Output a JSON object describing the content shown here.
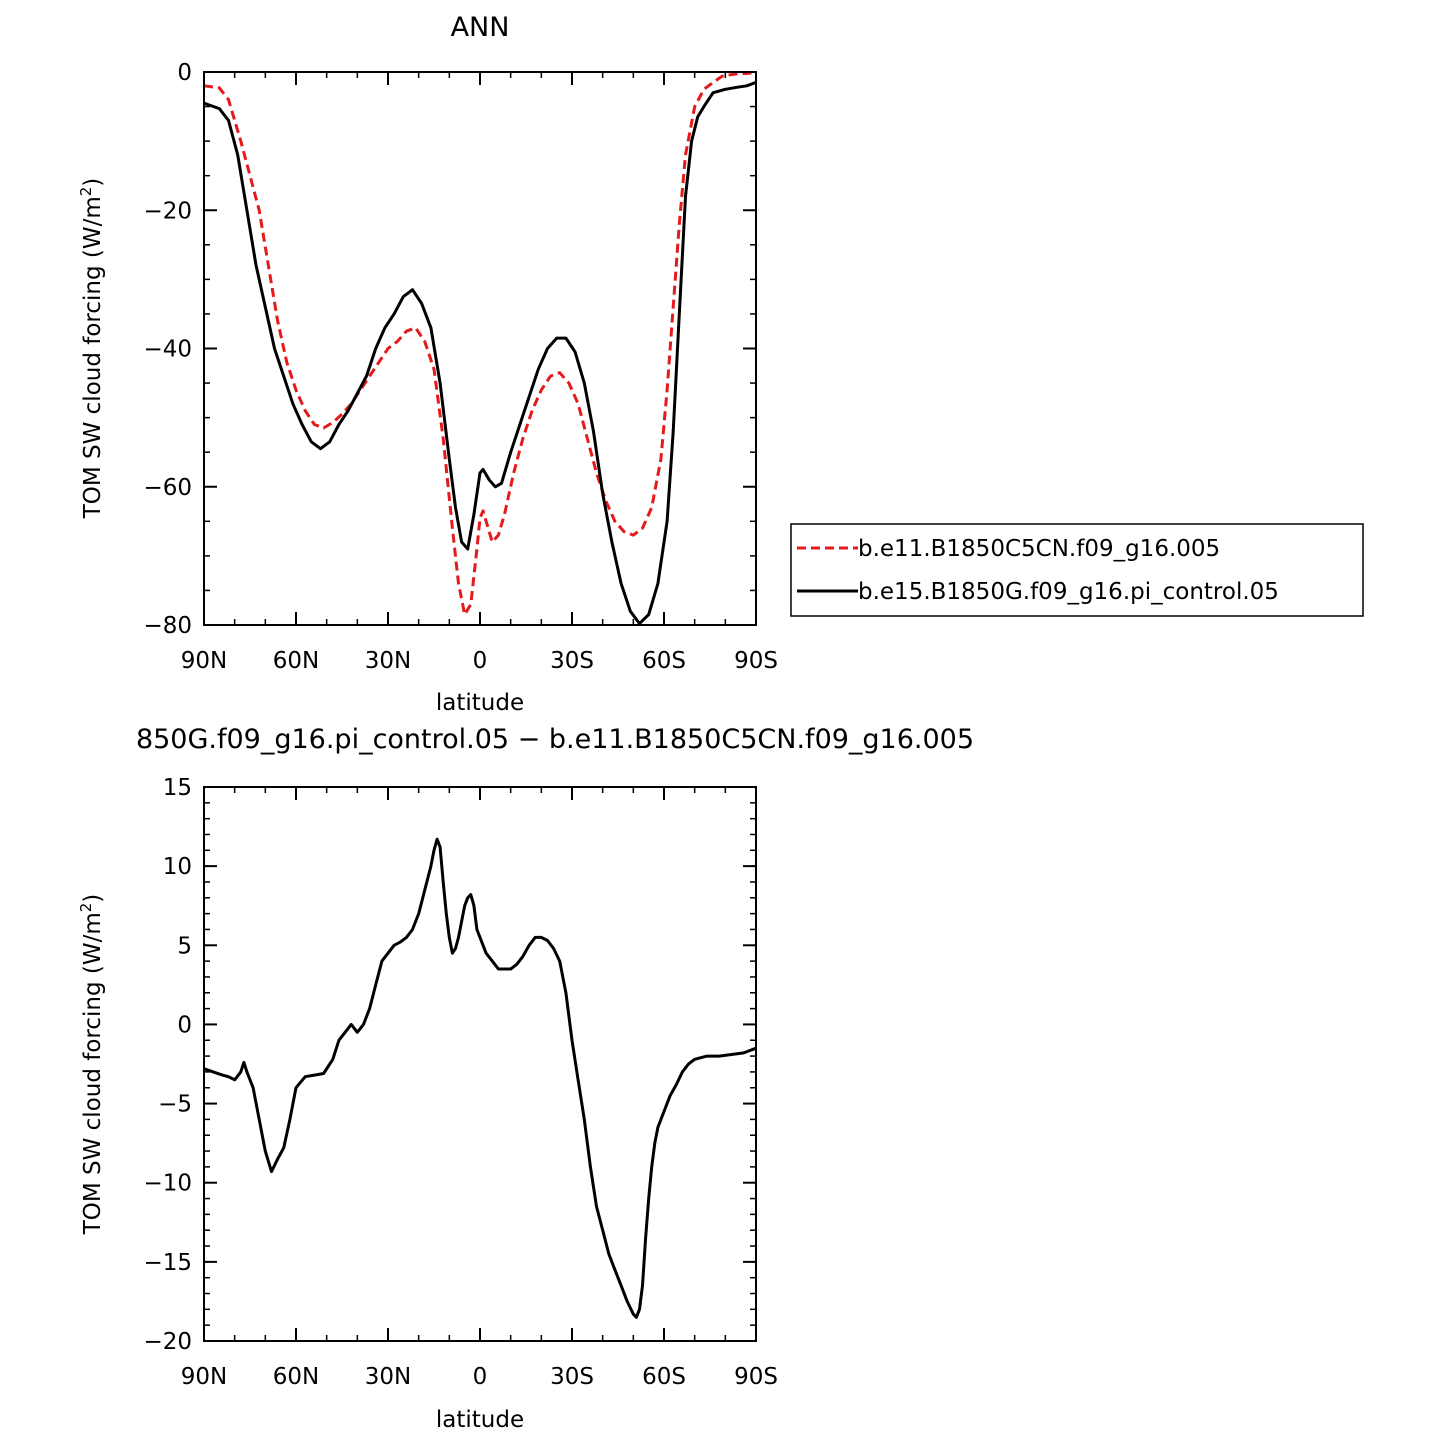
{
  "chart_data": [
    {
      "type": "line",
      "title": "ANN",
      "xlabel": "latitude",
      "ylabel": "TOM SW cloud forcing (W/m",
      "ylabel_sup": "2",
      "ylabel_close": ")",
      "xlim": [
        90,
        -90
      ],
      "ylim": [
        -80,
        0
      ],
      "xticks": [
        {
          "value": 90,
          "label": "90N"
        },
        {
          "value": 60,
          "label": "60N"
        },
        {
          "value": 30,
          "label": "30N"
        },
        {
          "value": 0,
          "label": "0"
        },
        {
          "value": -30,
          "label": "30S"
        },
        {
          "value": -60,
          "label": "60S"
        },
        {
          "value": -90,
          "label": "90S"
        }
      ],
      "yticks": [
        {
          "value": 0,
          "label": "0"
        },
        {
          "value": -20,
          "label": "−20"
        },
        {
          "value": -40,
          "label": "−40"
        },
        {
          "value": -60,
          "label": "−60"
        },
        {
          "value": -80,
          "label": "−80"
        }
      ],
      "legend_position": "right",
      "series": [
        {
          "name": "b.e11.B1850C5CN.f09_g16.005",
          "color": "#e41a1c",
          "dash": "dashed",
          "points": [
            [
              90,
              -2
            ],
            [
              85,
              -2.3
            ],
            [
              82,
              -4
            ],
            [
              78,
              -10
            ],
            [
              75,
              -15
            ],
            [
              72,
              -20
            ],
            [
              69,
              -28
            ],
            [
              66,
              -36
            ],
            [
              63,
              -42
            ],
            [
              60,
              -46
            ],
            [
              57,
              -49
            ],
            [
              54,
              -51
            ],
            [
              51,
              -51.5
            ],
            [
              48,
              -50.7
            ],
            [
              45,
              -49.5
            ],
            [
              42,
              -48
            ],
            [
              39,
              -46
            ],
            [
              36,
              -44
            ],
            [
              33,
              -42
            ],
            [
              30,
              -40
            ],
            [
              27,
              -39
            ],
            [
              24,
              -37.5
            ],
            [
              21,
              -37
            ],
            [
              18,
              -39
            ],
            [
              15,
              -43
            ],
            [
              12,
              -53
            ],
            [
              9,
              -66
            ],
            [
              7,
              -74
            ],
            [
              5,
              -78.5
            ],
            [
              3,
              -77
            ],
            [
              1,
              -69
            ],
            [
              0,
              -64.5
            ],
            [
              -1,
              -63.5
            ],
            [
              -2,
              -65
            ],
            [
              -4,
              -68
            ],
            [
              -6,
              -67
            ],
            [
              -8,
              -64
            ],
            [
              -11,
              -58
            ],
            [
              -14,
              -53
            ],
            [
              -17,
              -49
            ],
            [
              -20,
              -46
            ],
            [
              -23,
              -44
            ],
            [
              -26,
              -43.5
            ],
            [
              -29,
              -45
            ],
            [
              -32,
              -48
            ],
            [
              -35,
              -53
            ],
            [
              -38,
              -58
            ],
            [
              -41,
              -62
            ],
            [
              -44,
              -65
            ],
            [
              -47,
              -66.5
            ],
            [
              -50,
              -67
            ],
            [
              -53,
              -66
            ],
            [
              -56,
              -63
            ],
            [
              -59,
              -56
            ],
            [
              -61,
              -46
            ],
            [
              -63,
              -34
            ],
            [
              -65,
              -22
            ],
            [
              -67,
              -12
            ],
            [
              -70,
              -5
            ],
            [
              -73,
              -2.5
            ],
            [
              -76,
              -1.5
            ],
            [
              -79,
              -0.6
            ],
            [
              -83,
              -0.3
            ],
            [
              -87,
              -0.2
            ],
            [
              -90,
              -0.1
            ]
          ]
        },
        {
          "name": "b.e15.B1850G.f09_g16.pi_control.05",
          "color": "#000000",
          "dash": "solid",
          "points": [
            [
              90,
              -4.5
            ],
            [
              85,
              -5.3
            ],
            [
              82,
              -7
            ],
            [
              79,
              -12
            ],
            [
              76,
              -20
            ],
            [
              73,
              -28
            ],
            [
              70,
              -34
            ],
            [
              67,
              -40
            ],
            [
              64,
              -44
            ],
            [
              61,
              -48
            ],
            [
              58,
              -51
            ],
            [
              55,
              -53.5
            ],
            [
              52,
              -54.5
            ],
            [
              49,
              -53.5
            ],
            [
              46,
              -51
            ],
            [
              43,
              -49
            ],
            [
              40,
              -46.5
            ],
            [
              37,
              -44
            ],
            [
              34,
              -40
            ],
            [
              31,
              -37
            ],
            [
              28,
              -35
            ],
            [
              25,
              -32.5
            ],
            [
              22,
              -31.5
            ],
            [
              19,
              -33.5
            ],
            [
              16,
              -37
            ],
            [
              13,
              -45
            ],
            [
              10,
              -56
            ],
            [
              8,
              -63
            ],
            [
              6,
              -68
            ],
            [
              4,
              -69
            ],
            [
              2,
              -64
            ],
            [
              0,
              -58
            ],
            [
              -1,
              -57.5
            ],
            [
              -3,
              -59
            ],
            [
              -5,
              -60
            ],
            [
              -7,
              -59.5
            ],
            [
              -10,
              -55
            ],
            [
              -13,
              -51
            ],
            [
              -16,
              -47
            ],
            [
              -19,
              -43
            ],
            [
              -22,
              -40
            ],
            [
              -25,
              -38.5
            ],
            [
              -28,
              -38.5
            ],
            [
              -31,
              -40.5
            ],
            [
              -34,
              -45
            ],
            [
              -37,
              -52
            ],
            [
              -40,
              -61
            ],
            [
              -43,
              -68
            ],
            [
              -46,
              -74
            ],
            [
              -49,
              -78
            ],
            [
              -52,
              -79.8
            ],
            [
              -55,
              -78.5
            ],
            [
              -58,
              -74
            ],
            [
              -61,
              -65
            ],
            [
              -63,
              -52
            ],
            [
              -65,
              -35
            ],
            [
              -67,
              -18
            ],
            [
              -69,
              -10
            ],
            [
              -71,
              -6.5
            ],
            [
              -73,
              -5
            ],
            [
              -76,
              -3
            ],
            [
              -80,
              -2.5
            ],
            [
              -84,
              -2.2
            ],
            [
              -87,
              -2
            ],
            [
              -90,
              -1.5
            ]
          ]
        }
      ]
    },
    {
      "type": "line",
      "title": "850G.f09_g16.pi_control.05 − b.e11.B1850C5CN.f09_g16.005",
      "xlabel": "latitude",
      "ylabel": "TOM SW cloud forcing (W/m",
      "ylabel_sup": "2",
      "ylabel_close": ")",
      "xlim": [
        90,
        -90
      ],
      "ylim": [
        -20,
        15
      ],
      "xticks": [
        {
          "value": 90,
          "label": "90N"
        },
        {
          "value": 60,
          "label": "60N"
        },
        {
          "value": 30,
          "label": "30N"
        },
        {
          "value": 0,
          "label": "0"
        },
        {
          "value": -30,
          "label": "30S"
        },
        {
          "value": -60,
          "label": "60S"
        },
        {
          "value": -90,
          "label": "90S"
        }
      ],
      "yticks": [
        {
          "value": 15,
          "label": "15"
        },
        {
          "value": 10,
          "label": "10"
        },
        {
          "value": 5,
          "label": "5"
        },
        {
          "value": 0,
          "label": "0"
        },
        {
          "value": -5,
          "label": "−5"
        },
        {
          "value": -10,
          "label": "−10"
        },
        {
          "value": -15,
          "label": "−15"
        },
        {
          "value": -20,
          "label": "−20"
        }
      ],
      "series": [
        {
          "color": "#000000",
          "dash": "solid",
          "points": [
            [
              90,
              -2.8
            ],
            [
              87,
              -3
            ],
            [
              84,
              -3.2
            ],
            [
              82,
              -3.3
            ],
            [
              80,
              -3.5
            ],
            [
              78,
              -3
            ],
            [
              77,
              -2.4
            ],
            [
              76,
              -3
            ],
            [
              74,
              -4
            ],
            [
              72,
              -6
            ],
            [
              70,
              -8
            ],
            [
              68,
              -9.3
            ],
            [
              66,
              -8.5
            ],
            [
              64,
              -7.8
            ],
            [
              62,
              -6
            ],
            [
              60,
              -4
            ],
            [
              57,
              -3.3
            ],
            [
              54,
              -3.2
            ],
            [
              51,
              -3.1
            ],
            [
              48,
              -2.2
            ],
            [
              46,
              -1
            ],
            [
              44,
              -0.5
            ],
            [
              42,
              0
            ],
            [
              40,
              -0.5
            ],
            [
              38,
              0
            ],
            [
              36,
              1
            ],
            [
              34,
              2.5
            ],
            [
              32,
              4
            ],
            [
              30,
              4.5
            ],
            [
              28,
              5
            ],
            [
              26,
              5.2
            ],
            [
              24,
              5.5
            ],
            [
              22,
              6
            ],
            [
              20,
              7
            ],
            [
              18,
              8.5
            ],
            [
              16,
              10
            ],
            [
              15,
              11
            ],
            [
              14,
              11.7
            ],
            [
              13,
              11.2
            ],
            [
              12,
              9
            ],
            [
              11,
              7
            ],
            [
              10,
              5.5
            ],
            [
              9,
              4.5
            ],
            [
              8,
              4.8
            ],
            [
              7,
              5.5
            ],
            [
              6,
              6.5
            ],
            [
              5,
              7.5
            ],
            [
              4,
              8
            ],
            [
              3,
              8.2
            ],
            [
              2,
              7.5
            ],
            [
              1,
              6
            ],
            [
              0,
              5.5
            ],
            [
              -2,
              4.5
            ],
            [
              -4,
              4
            ],
            [
              -6,
              3.5
            ],
            [
              -8,
              3.5
            ],
            [
              -10,
              3.5
            ],
            [
              -12,
              3.8
            ],
            [
              -14,
              4.3
            ],
            [
              -16,
              5
            ],
            [
              -18,
              5.5
            ],
            [
              -20,
              5.5
            ],
            [
              -22,
              5.3
            ],
            [
              -24,
              4.8
            ],
            [
              -26,
              4
            ],
            [
              -28,
              2
            ],
            [
              -30,
              -1
            ],
            [
              -32,
              -3.5
            ],
            [
              -34,
              -6
            ],
            [
              -36,
              -9
            ],
            [
              -38,
              -11.5
            ],
            [
              -40,
              -13
            ],
            [
              -42,
              -14.5
            ],
            [
              -44,
              -15.5
            ],
            [
              -46,
              -16.5
            ],
            [
              -48,
              -17.5
            ],
            [
              -50,
              -18.3
            ],
            [
              -51,
              -18.5
            ],
            [
              -52,
              -18
            ],
            [
              -53,
              -16.5
            ],
            [
              -54,
              -13.5
            ],
            [
              -55,
              -11
            ],
            [
              -56,
              -9
            ],
            [
              -57,
              -7.5
            ],
            [
              -58,
              -6.5
            ],
            [
              -60,
              -5.5
            ],
            [
              -62,
              -4.5
            ],
            [
              -64,
              -3.8
            ],
            [
              -66,
              -3
            ],
            [
              -68,
              -2.5
            ],
            [
              -70,
              -2.2
            ],
            [
              -74,
              -2
            ],
            [
              -78,
              -2
            ],
            [
              -82,
              -1.9
            ],
            [
              -86,
              -1.8
            ],
            [
              -90,
              -1.5
            ]
          ]
        }
      ]
    }
  ]
}
